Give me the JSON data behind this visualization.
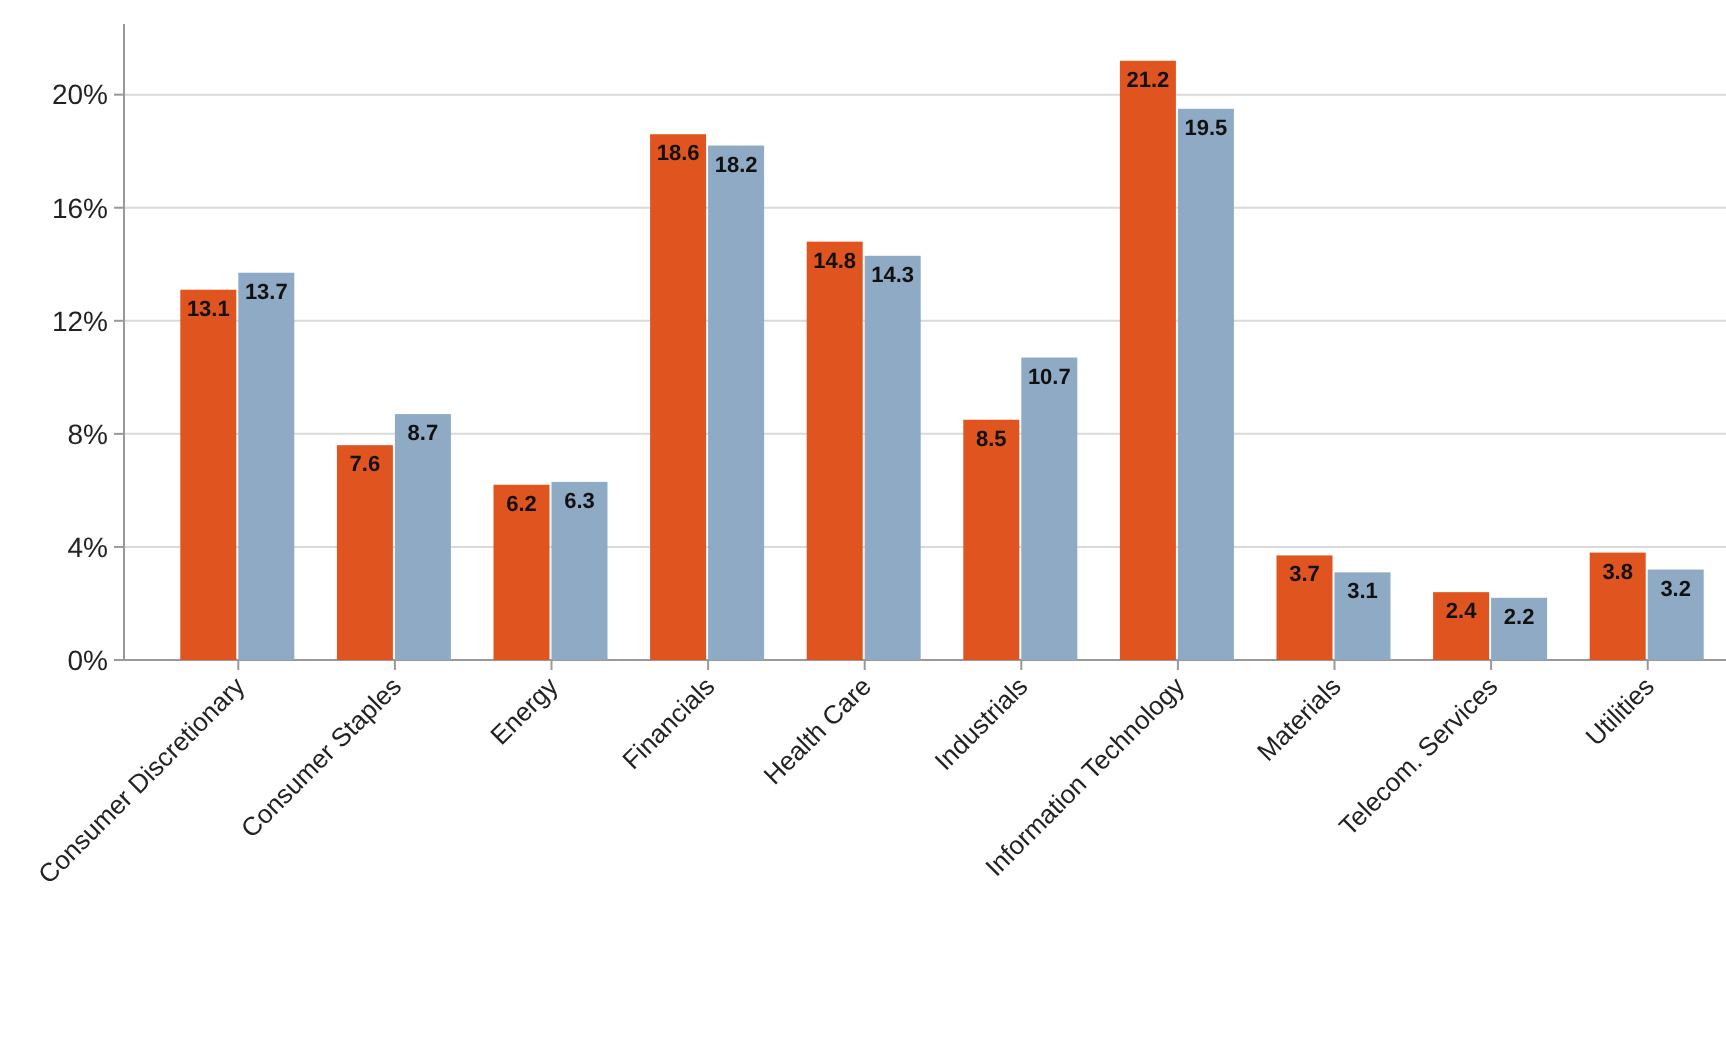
{
  "chart_data": {
    "type": "bar",
    "categories": [
      "Consumer Discretionary",
      "Consumer Staples",
      "Energy",
      "Financials",
      "Health Care",
      "Industrials",
      "Information Technology",
      "Materials",
      "Telecom. Services",
      "Utilities"
    ],
    "series": [
      {
        "color": "#e0541f",
        "values": [
          13.1,
          7.6,
          6.2,
          18.6,
          14.8,
          8.5,
          21.2,
          3.7,
          2.4,
          3.8
        ]
      },
      {
        "color": "#8faac4",
        "values": [
          13.7,
          8.7,
          6.3,
          18.2,
          14.3,
          10.7,
          19.5,
          3.1,
          2.2,
          3.2
        ]
      }
    ],
    "ylim": [
      0,
      22.5
    ],
    "yticks": [
      {
        "value": 0,
        "label": "0%"
      },
      {
        "value": 4,
        "label": "4%"
      },
      {
        "value": 8,
        "label": "8%"
      },
      {
        "value": 12,
        "label": "12%"
      },
      {
        "value": 16,
        "label": "16%"
      },
      {
        "value": 20,
        "label": "20%"
      }
    ],
    "grid": "y",
    "data_labels": true,
    "legend": false
  }
}
